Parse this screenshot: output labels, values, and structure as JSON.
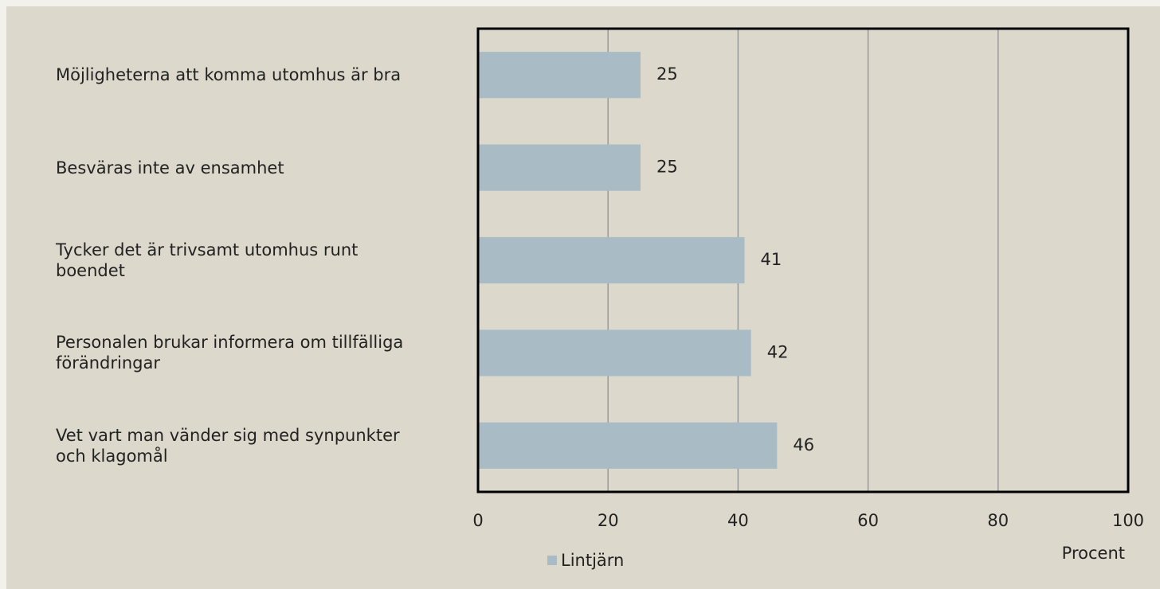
{
  "chart_data": {
    "type": "bar",
    "orientation": "horizontal",
    "categories": [
      "Möjligheterna att komma utomhus är bra",
      "Besväras inte av ensamhet",
      "Tycker det är trivsamt utomhus runt boendet",
      "Personalen brukar informera om tillfälliga förändringar",
      "Vet vart man vänder sig med synpunkter och klagomål"
    ],
    "series": [
      {
        "name": "Lintjärn",
        "color": "#a9bcc6",
        "values": [
          25,
          25,
          41,
          42,
          46
        ]
      }
    ],
    "xlim": [
      0,
      100
    ],
    "xticks": [
      0,
      20,
      40,
      60,
      80,
      100
    ],
    "x_label": "Procent",
    "grid": true
  }
}
